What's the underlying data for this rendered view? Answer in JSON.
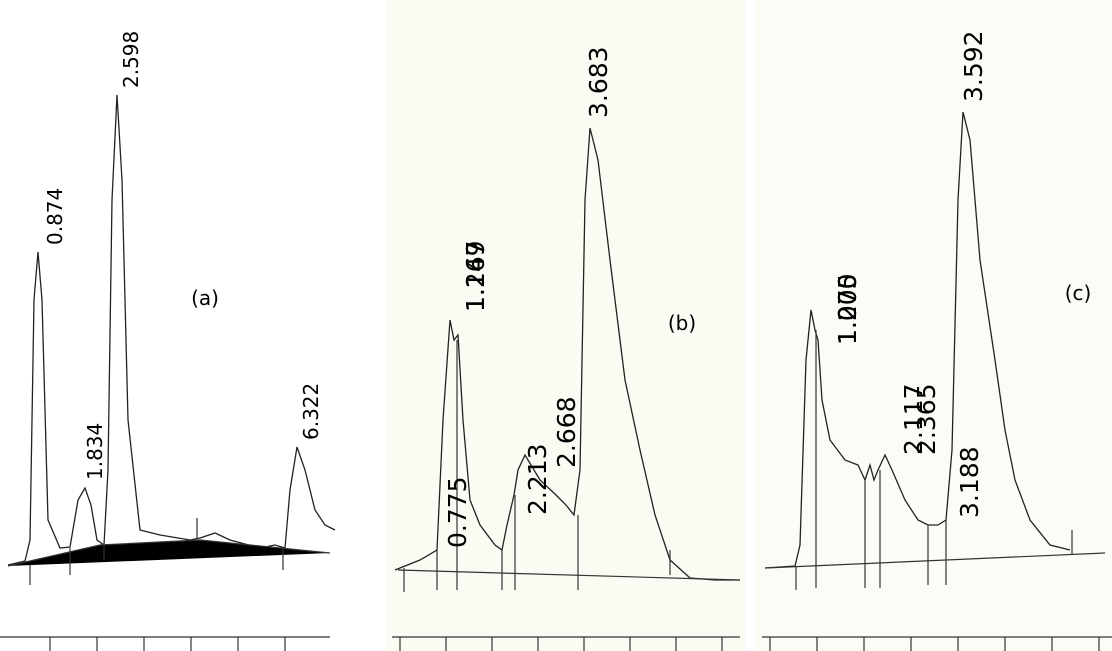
{
  "panels": [
    {
      "label": "(a)",
      "peaks": [
        "0.874",
        "1.834",
        "2.598",
        "6.322"
      ]
    },
    {
      "label": "(b)",
      "peaks": [
        "1.167",
        "1.249",
        "0.775",
        "2.213",
        "2.668",
        "3.683"
      ]
    },
    {
      "label": "(c)",
      "peaks": [
        "1.075",
        "1.200",
        "2.117",
        "2.365",
        "3.188",
        "3.592"
      ]
    }
  ]
}
